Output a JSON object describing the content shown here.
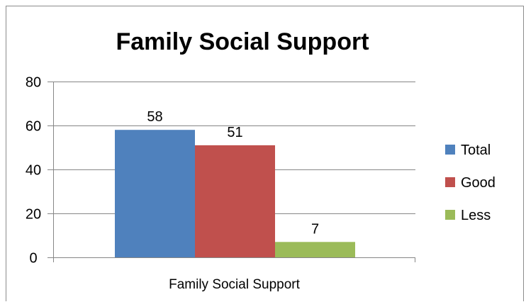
{
  "chart_data": {
    "type": "bar",
    "title": "Family Social Support",
    "categories": [
      "Family Social Support"
    ],
    "series": [
      {
        "name": "Total",
        "values": [
          58
        ],
        "color": "#4f81bd"
      },
      {
        "name": "Good",
        "values": [
          51
        ],
        "color": "#c0504d"
      },
      {
        "name": "Less",
        "values": [
          7
        ],
        "color": "#9bbb59"
      }
    ],
    "ylim": [
      0,
      80
    ],
    "yticks": [
      0,
      20,
      40,
      60,
      80
    ],
    "ytick_labels": [
      "0",
      "20",
      "40",
      "60",
      "80"
    ],
    "data_labels": [
      "58",
      "51",
      "7"
    ],
    "grid": true,
    "legend": {
      "position": "right",
      "entries": [
        "Total",
        "Good",
        "Less"
      ]
    },
    "xlabel": "",
    "ylabel": ""
  }
}
